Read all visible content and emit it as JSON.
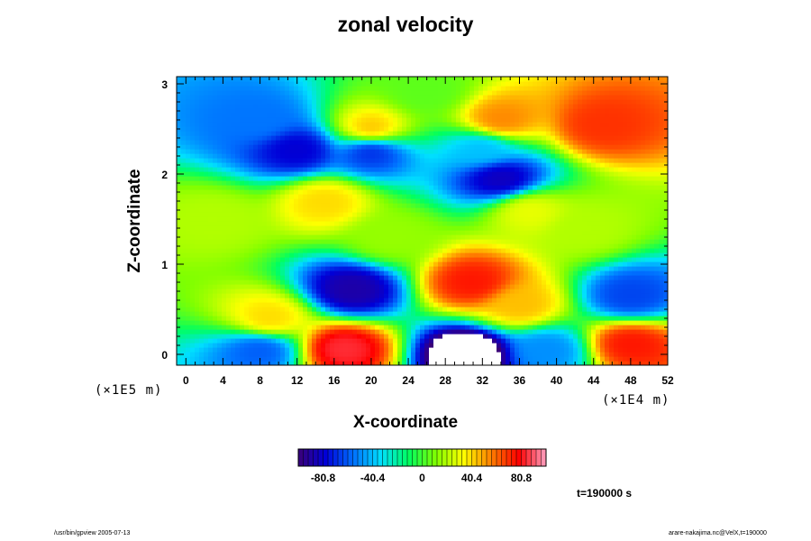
{
  "chart_data": {
    "type": "heatmap",
    "title": "zonal velocity",
    "xlabel": "X-coordinate",
    "ylabel": "Z-coordinate",
    "x_scale_label": "(×1E4 m)",
    "y_scale_label": "(×1E5 m)",
    "xlim": [
      -1,
      52
    ],
    "ylim": [
      -0.12,
      3.08
    ],
    "x_ticks": [
      "0",
      "4",
      "8",
      "12",
      "16",
      "20",
      "24",
      "28",
      "32",
      "36",
      "40",
      "44",
      "48",
      "52"
    ],
    "y_ticks": [
      "0",
      "1",
      "2",
      "3"
    ],
    "colorbar": {
      "range": [
        -101,
        101
      ],
      "ticks": [
        "-80.8",
        "-40.4",
        "0",
        "40.4",
        "80.8"
      ],
      "colormap": [
        "#3a0078",
        "#0000d8",
        "#0070ff",
        "#00e0ff",
        "#00ff60",
        "#80ff00",
        "#ffff00",
        "#ff8000",
        "#ff0000",
        "#ffa0c0"
      ]
    },
    "features": [
      {
        "x": 26,
        "z": 2.92,
        "value": 5
      },
      {
        "x": 8,
        "z": 2.6,
        "value": -55
      },
      {
        "x": 20,
        "z": 2.5,
        "value": 45
      },
      {
        "x": 34,
        "z": 2.6,
        "value": 55
      },
      {
        "x": 45,
        "z": 2.55,
        "value": 70
      },
      {
        "x": 12,
        "z": 2.27,
        "value": -80
      },
      {
        "x": 20,
        "z": 2.26,
        "value": -70
      },
      {
        "x": 32,
        "z": 2.28,
        "value": -40
      },
      {
        "x": 34,
        "z": 1.95,
        "value": -85
      },
      {
        "x": 15,
        "z": 1.7,
        "value": 40
      },
      {
        "x": 37,
        "z": 1.6,
        "value": 30
      },
      {
        "x": 18,
        "z": 0.72,
        "value": -90
      },
      {
        "x": 31,
        "z": 0.8,
        "value": 75
      },
      {
        "x": 36,
        "z": 0.55,
        "value": 45
      },
      {
        "x": 48,
        "z": 0.65,
        "value": -65
      },
      {
        "x": 9,
        "z": 0.4,
        "value": 40
      },
      {
        "x": 17,
        "z": 0.07,
        "value": 85
      },
      {
        "x": 30.5,
        "z": 0.02,
        "value": -120
      },
      {
        "x": 48,
        "z": 0.12,
        "value": 75
      },
      {
        "x": 8,
        "z": 0.05,
        "value": -60
      },
      {
        "x": 39,
        "z": 0.05,
        "value": -50
      },
      {
        "x": 22,
        "z": 1.3,
        "value": 15
      },
      {
        "x": 43,
        "z": 1.4,
        "value": 20
      },
      {
        "x": 3,
        "z": 1.5,
        "value": 20
      }
    ]
  },
  "time_label": "t=190000 s",
  "footer": {
    "left": "/usr/bin/gpview 2005-07-13",
    "right": "arare-nakajima.nc@VelX,t=190000"
  }
}
